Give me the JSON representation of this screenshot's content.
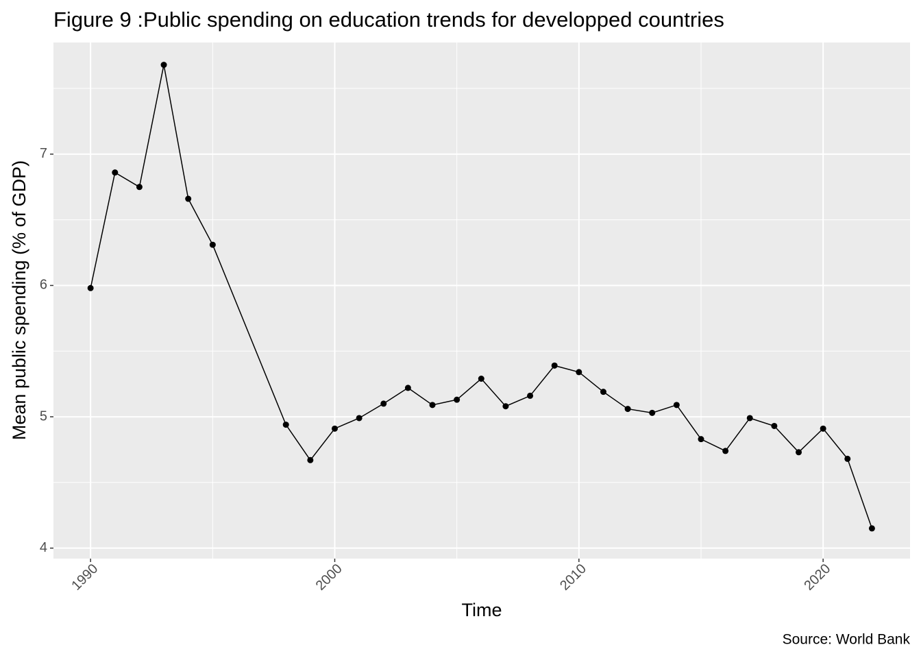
{
  "chart_data": {
    "type": "line",
    "title": "Figure 9 :Public spending on education trends for developped countries",
    "x_label": "Time",
    "y_label": "Mean public spending (% of GDP)",
    "caption": "Source: World Bank",
    "x": [
      1990,
      1991,
      1992,
      1993,
      1994,
      1995,
      1998,
      1999,
      2000,
      2001,
      2002,
      2003,
      2004,
      2005,
      2006,
      2007,
      2008,
      2009,
      2010,
      2011,
      2012,
      2013,
      2014,
      2015,
      2016,
      2017,
      2018,
      2019,
      2020,
      2021,
      2022
    ],
    "series": [
      {
        "color": "#000000",
        "values": [
          5.98,
          6.86,
          6.75,
          7.68,
          6.66,
          6.31,
          4.94,
          4.67,
          4.91,
          4.99,
          5.1,
          5.22,
          5.09,
          5.13,
          5.29,
          5.08,
          5.16,
          5.39,
          5.34,
          5.19,
          5.06,
          5.03,
          5.09,
          4.83,
          4.74,
          4.99,
          4.93,
          4.73,
          4.91,
          4.68,
          4.15
        ]
      }
    ],
    "xlim": [
      1988.48,
      2023.56
    ],
    "xticks": [
      1990,
      2000,
      2010,
      2020
    ],
    "ylim": [
      3.92,
      7.85
    ],
    "yticks": [
      4,
      5,
      6,
      7
    ],
    "grid": true
  }
}
